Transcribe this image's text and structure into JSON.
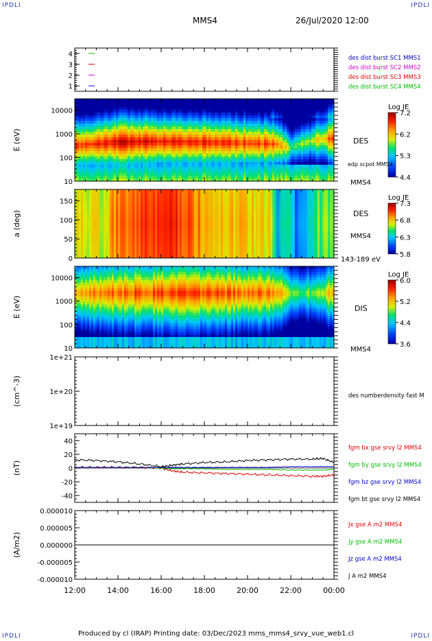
{
  "corners": {
    "tl": "IPDLI",
    "tr": "IPDLI",
    "bl": "IPDLI",
    "br": "IPDLI"
  },
  "header": {
    "mission": "MMS4",
    "datetime": "26/Jul/2020 12:00"
  },
  "footer": {
    "text": "Produced by cl (IRAP)   Printing date: 03/Dec/2023   mms_mms4_srvy_vue_web1.cl"
  },
  "colors": {
    "black": "#000000",
    "red": "#dd0000",
    "green": "#00bb00",
    "blue": "#0000cc",
    "magenta": "#cc00cc"
  },
  "chart_data": [
    {
      "type": "line",
      "panel": "burst-flags",
      "yticks": [
        "1",
        "2",
        "3",
        "4"
      ],
      "ylim": [
        0.5,
        4.5
      ],
      "legend": [
        {
          "label": "des dist burst SC1 MMS1",
          "color": "#0000cc"
        },
        {
          "label": "des dist burst SC2 MMS2",
          "color": "#cc00cc"
        },
        {
          "label": "des dist burst SC3 MMS3",
          "color": "#dd0000"
        },
        {
          "label": "des dist burst SC4 MMS4",
          "color": "#00bb00"
        }
      ]
    },
    {
      "type": "heatmap",
      "panel": "des-energy",
      "ylabel": "E (eV)",
      "yscale": "log",
      "ylim": [
        10,
        30000
      ],
      "yticks": [
        "10",
        "100",
        "1000",
        "10000"
      ],
      "labels": [
        "DES",
        "edp scpot MMS4",
        "MMS4"
      ],
      "colorbar": {
        "title": "Log JE",
        "ticks": [
          "7.2",
          "6.2",
          "5.3",
          "4.4"
        ]
      }
    },
    {
      "type": "heatmap",
      "panel": "des-pitch",
      "ylabel": "a (deg)",
      "ylim": [
        0,
        180
      ],
      "yticks": [
        "0",
        "50",
        "100",
        "150"
      ],
      "labels": [
        "DES",
        "MMS4",
        "143-189 eV"
      ],
      "colorbar": {
        "title": "Log JE",
        "ticks": [
          "7.3",
          "6.8",
          "6.3",
          "5.8"
        ]
      }
    },
    {
      "type": "heatmap",
      "panel": "dis-energy",
      "ylabel": "E (eV)",
      "yscale": "log",
      "ylim": [
        10,
        30000
      ],
      "yticks": [
        "10",
        "100",
        "1000",
        "10000"
      ],
      "labels": [
        "DIS",
        "MMS4"
      ],
      "colorbar": {
        "title": "Log JE",
        "ticks": [
          "6.0",
          "5.2",
          "4.4",
          "3.6"
        ]
      }
    },
    {
      "type": "line",
      "panel": "density",
      "ylabel": "(cm^-3)",
      "yscale": "log",
      "yticks": [
        "1e+19",
        "1e+20",
        "1e+21"
      ],
      "legend": [
        {
          "label": "des numberdensity fast M",
          "color": "#000000"
        }
      ]
    },
    {
      "type": "line",
      "panel": "fgm",
      "ylabel": "(nT)",
      "ylim": [
        -50,
        50
      ],
      "yticks": [
        "-40",
        "-20",
        "0",
        "20",
        "40"
      ],
      "x": [
        "12:00",
        "13:00",
        "14:00",
        "15:00",
        "16:00",
        "16:30",
        "17:00",
        "18:00",
        "19:00",
        "20:00",
        "21:00",
        "22:00",
        "23:00",
        "23:30",
        "00:00"
      ],
      "series": [
        {
          "name": "fgm bx gse srvy l2 MMS4",
          "color": "#dd0000",
          "values": [
            1,
            1,
            1,
            1,
            0,
            -4,
            -6,
            -7,
            -8,
            -9,
            -10,
            -11,
            -12,
            -12,
            -10
          ]
        },
        {
          "name": "fgm by gse srvy l2 MMS4",
          "color": "#00bb00",
          "values": [
            1,
            1,
            1,
            1,
            0,
            -1,
            -1,
            -1,
            -2,
            -2,
            -2,
            -3,
            -3,
            -3,
            -2
          ]
        },
        {
          "name": "fgm bz gse srvy l2 MMS4",
          "color": "#0000cc",
          "values": [
            1,
            1,
            1,
            1,
            1,
            1,
            1,
            1,
            1,
            1,
            1,
            2,
            2,
            2,
            2
          ]
        },
        {
          "name": "fgm bt gse srvy l2 MMS4",
          "color": "#000000",
          "values": [
            12,
            11,
            9,
            6,
            2,
            4,
            6,
            8,
            9,
            11,
            12,
            13,
            13,
            14,
            8
          ]
        }
      ]
    },
    {
      "type": "line",
      "panel": "current",
      "ylabel": "(A/m2)",
      "ylim": [
        -1e-05,
        1e-05
      ],
      "yticks": [
        "-0.000010",
        "-0.000005",
        "0.000000",
        "0.000005",
        "0.000010"
      ],
      "x": [
        "12:00",
        "14:00",
        "16:00",
        "18:00",
        "20:00",
        "22:00",
        "00:00"
      ],
      "series": [
        {
          "name": "Jx gse A m2 MMS4",
          "color": "#dd0000",
          "values": [
            0,
            0,
            0,
            0,
            0,
            0,
            0
          ]
        },
        {
          "name": "Jy gse A m2 MMS4",
          "color": "#00bb00",
          "values": [
            0,
            0,
            0,
            0,
            0,
            0,
            0
          ]
        },
        {
          "name": "Jz gse A m2 MMS4",
          "color": "#0000cc",
          "values": [
            0,
            0,
            0,
            0,
            0,
            0,
            0
          ]
        },
        {
          "name": "J A m2 MMS4",
          "color": "#000000",
          "values": [
            0,
            0,
            0,
            0,
            0,
            0,
            0
          ]
        }
      ]
    }
  ],
  "xaxis": {
    "ticks": [
      "12:00",
      "14:00",
      "16:00",
      "18:00",
      "20:00",
      "22:00",
      "00:00"
    ]
  }
}
